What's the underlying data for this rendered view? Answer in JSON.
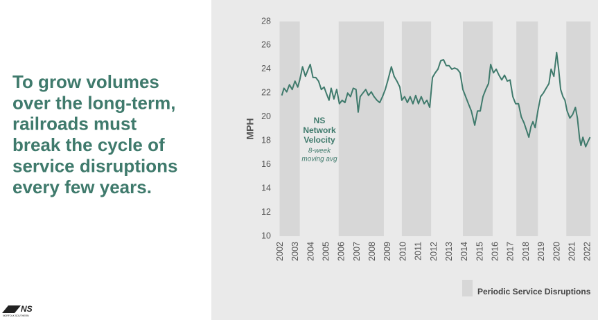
{
  "headline": [
    "To grow volumes",
    "over the long-term,",
    "railroads must",
    "break the cycle of",
    "service disruptions",
    "every few years."
  ],
  "logo": {
    "mark": "NS",
    "name": "NORFOLK SOUTHERN"
  },
  "chart_data": {
    "type": "line",
    "ylabel": "MPH",
    "annotation": {
      "title": [
        "NS",
        "Network",
        "Velocity"
      ],
      "note": [
        "8-week",
        "moving avg"
      ]
    },
    "color": "#3f7a6c",
    "x": [
      2002.09,
      2002.23,
      2002.41,
      2002.59,
      2002.77,
      2002.95,
      2003.13,
      2003.26,
      2003.44,
      2003.63,
      2003.81,
      2003.94,
      2004.12,
      2004.3,
      2004.48,
      2004.66,
      2004.84,
      2004.98,
      2005.16,
      2005.3,
      2005.48,
      2005.66,
      2005.84,
      2006.02,
      2006.2,
      2006.38,
      2006.56,
      2006.74,
      2006.92,
      2007.06,
      2007.19,
      2007.37,
      2007.55,
      2007.73,
      2007.91,
      2008.09,
      2008.28,
      2008.46,
      2008.64,
      2008.82,
      2009.0,
      2009.22,
      2009.4,
      2009.58,
      2009.77,
      2009.9,
      2010.08,
      2010.26,
      2010.44,
      2010.62,
      2010.8,
      2010.98,
      2011.16,
      2011.35,
      2011.53,
      2011.71,
      2011.89,
      2012.07,
      2012.25,
      2012.43,
      2012.61,
      2012.79,
      2012.97,
      2013.15,
      2013.33,
      2013.51,
      2013.69,
      2013.87,
      2014.05,
      2014.23,
      2014.42,
      2014.64,
      2014.82,
      2015.0,
      2015.18,
      2015.36,
      2015.54,
      2015.68,
      2015.86,
      2016.04,
      2016.22,
      2016.4,
      2016.58,
      2016.76,
      2016.94,
      2017.12,
      2017.3,
      2017.49,
      2017.67,
      2017.85,
      2018.03,
      2018.16,
      2018.3,
      2018.43,
      2018.57,
      2018.75,
      2018.93,
      2019.11,
      2019.29,
      2019.47,
      2019.61,
      2019.79,
      2019.97,
      2020.1,
      2020.23,
      2020.38,
      2020.51,
      2020.65,
      2020.83,
      2021.01,
      2021.19,
      2021.32,
      2021.46,
      2021.55,
      2021.68,
      2021.86,
      2022.0,
      2022.14
    ],
    "values": [
      21.8,
      22.4,
      22.1,
      22.7,
      22.3,
      23.0,
      22.5,
      23.1,
      24.2,
      23.4,
      24.0,
      24.4,
      23.3,
      23.3,
      23.0,
      22.3,
      22.5,
      22.0,
      21.4,
      22.4,
      21.5,
      22.3,
      21.1,
      21.4,
      21.2,
      22.0,
      21.7,
      22.4,
      22.3,
      20.4,
      21.7,
      22.0,
      22.3,
      21.8,
      22.1,
      21.7,
      21.4,
      21.2,
      21.7,
      22.3,
      23.1,
      24.2,
      23.4,
      23.0,
      22.5,
      21.4,
      21.7,
      21.2,
      21.7,
      21.1,
      21.8,
      21.1,
      21.7,
      21.1,
      21.4,
      20.8,
      23.3,
      23.7,
      24.0,
      24.7,
      24.8,
      24.3,
      24.3,
      24.0,
      24.1,
      24.0,
      23.7,
      22.3,
      21.7,
      21.1,
      20.5,
      19.3,
      20.5,
      20.5,
      21.7,
      22.3,
      22.8,
      24.4,
      23.7,
      24.0,
      23.5,
      23.1,
      23.5,
      23.0,
      23.1,
      21.7,
      21.1,
      21.1,
      20.0,
      19.5,
      18.8,
      18.3,
      19.2,
      19.6,
      19.1,
      20.5,
      21.7,
      22.0,
      22.4,
      22.8,
      24.0,
      23.4,
      25.4,
      24.0,
      22.3,
      21.7,
      21.4,
      20.5,
      19.9,
      20.2,
      20.8,
      19.9,
      18.2,
      17.6,
      18.3,
      17.5,
      17.9,
      18.3
    ],
    "shaded_periods": [
      [
        2001.95,
        2003.26
      ],
      [
        2005.79,
        2008.73
      ],
      [
        2009.9,
        2011.8
      ],
      [
        2013.87,
        2015.81
      ],
      [
        2017.35,
        2018.75
      ],
      [
        2020.6,
        2022.18
      ]
    ],
    "shaded_label": "Periodic Service Disruptions",
    "shaded_color": "#d7d7d7",
    "xlim": [
      2001.7,
      2022.3
    ],
    "xticks": [
      2002,
      2003,
      2004,
      2005,
      2006,
      2007,
      2008,
      2009,
      2010,
      2011,
      2012,
      2013,
      2014,
      2015,
      2016,
      2017,
      2018,
      2019,
      2020,
      2021,
      2022
    ],
    "ylim": [
      10,
      28
    ],
    "yticks": [
      10,
      12,
      14,
      16,
      18,
      20,
      22,
      24,
      26,
      28
    ]
  }
}
